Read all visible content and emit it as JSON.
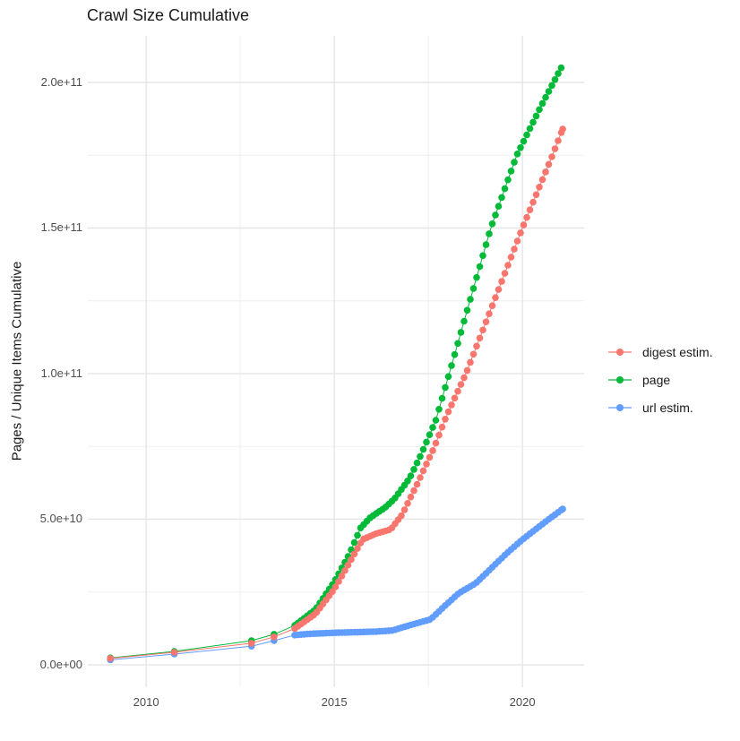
{
  "page": {
    "background": "#ffffff"
  },
  "chart_data": {
    "type": "line",
    "markers": true,
    "title": "Crawl Size Cumulative",
    "xlabel": "",
    "ylabel": "Pages / Unique Items Cumulative",
    "grid": true,
    "legend_position": "right",
    "xlim": [
      2008.45,
      2021.64
    ],
    "ylim_e9": [
      -7.7,
      216.0
    ],
    "x_ticks": [
      {
        "value": 2010,
        "label": "2010"
      },
      {
        "value": 2015,
        "label": "2015"
      },
      {
        "value": 2020,
        "label": "2020"
      }
    ],
    "y_ticks": [
      {
        "value_e9": 0,
        "label": "0.0e+00"
      },
      {
        "value_e9": 50,
        "label": "5.0e+10"
      },
      {
        "value_e9": 100,
        "label": "1.0e+11"
      },
      {
        "value_e9": 150,
        "label": "1.5e+11"
      },
      {
        "value_e9": 200,
        "label": "2.0e+11"
      }
    ],
    "x_minor_gridlines": [
      2012.5,
      2017.5
    ],
    "y_minor_gridlines_e9": [
      25,
      75,
      125,
      175
    ],
    "sampling": {
      "dense_from_year": 2013.95,
      "step_years": 0.08333
    },
    "draw_order": [
      1,
      2,
      0
    ],
    "series": [
      {
        "name": "digest estim.",
        "color": "#F8766D",
        "points_year_value_e9": [
          [
            2009.05,
            2.2
          ],
          [
            2010.75,
            4.3
          ],
          [
            2012.8,
            7.4
          ],
          [
            2013.4,
            9.6
          ],
          [
            2013.95,
            12.5
          ],
          [
            2014.5,
            17.5
          ],
          [
            2015.0,
            26
          ],
          [
            2015.4,
            35
          ],
          [
            2015.75,
            43
          ],
          [
            2016.1,
            45
          ],
          [
            2016.5,
            46.5
          ],
          [
            2016.8,
            51.5
          ],
          [
            2017.2,
            62
          ],
          [
            2017.65,
            74.5
          ],
          [
            2018.0,
            86
          ],
          [
            2018.5,
            100
          ],
          [
            2019.25,
            125
          ],
          [
            2020.0,
            150
          ],
          [
            2020.8,
            175
          ],
          [
            2021.07,
            184
          ]
        ]
      },
      {
        "name": "page",
        "color": "#00BA38",
        "points_year_value_e9": [
          [
            2009.05,
            2.4
          ],
          [
            2010.75,
            4.6
          ],
          [
            2012.8,
            8.3
          ],
          [
            2013.4,
            10.5
          ],
          [
            2013.95,
            13.5
          ],
          [
            2014.5,
            19
          ],
          [
            2015.0,
            28.5
          ],
          [
            2015.4,
            38
          ],
          [
            2015.7,
            47
          ],
          [
            2015.95,
            50.5
          ],
          [
            2016.35,
            54
          ],
          [
            2016.6,
            57
          ],
          [
            2017.0,
            64
          ],
          [
            2017.3,
            72
          ],
          [
            2017.7,
            84
          ],
          [
            2018.1,
            102
          ],
          [
            2018.45,
            118
          ],
          [
            2019.16,
            150
          ],
          [
            2019.85,
            175
          ],
          [
            2020.5,
            192
          ],
          [
            2021.03,
            205
          ]
        ]
      },
      {
        "name": "url estim.",
        "color": "#619CFF",
        "points_year_value_e9": [
          [
            2009.05,
            1.7
          ],
          [
            2010.75,
            3.7
          ],
          [
            2012.8,
            6.4
          ],
          [
            2013.4,
            8.3
          ],
          [
            2013.95,
            10.2
          ],
          [
            2014.3,
            10.6
          ],
          [
            2015.0,
            11.0
          ],
          [
            2015.6,
            11.2
          ],
          [
            2016.1,
            11.4
          ],
          [
            2016.55,
            11.8
          ],
          [
            2016.8,
            12.8
          ],
          [
            2017.2,
            14.3
          ],
          [
            2017.56,
            15.6
          ],
          [
            2017.92,
            20
          ],
          [
            2018.3,
            24.5
          ],
          [
            2018.76,
            28
          ],
          [
            2019.2,
            33.5
          ],
          [
            2019.6,
            38.5
          ],
          [
            2020.0,
            43
          ],
          [
            2020.4,
            47
          ],
          [
            2020.7,
            50
          ],
          [
            2021.07,
            53.5
          ]
        ]
      }
    ]
  }
}
